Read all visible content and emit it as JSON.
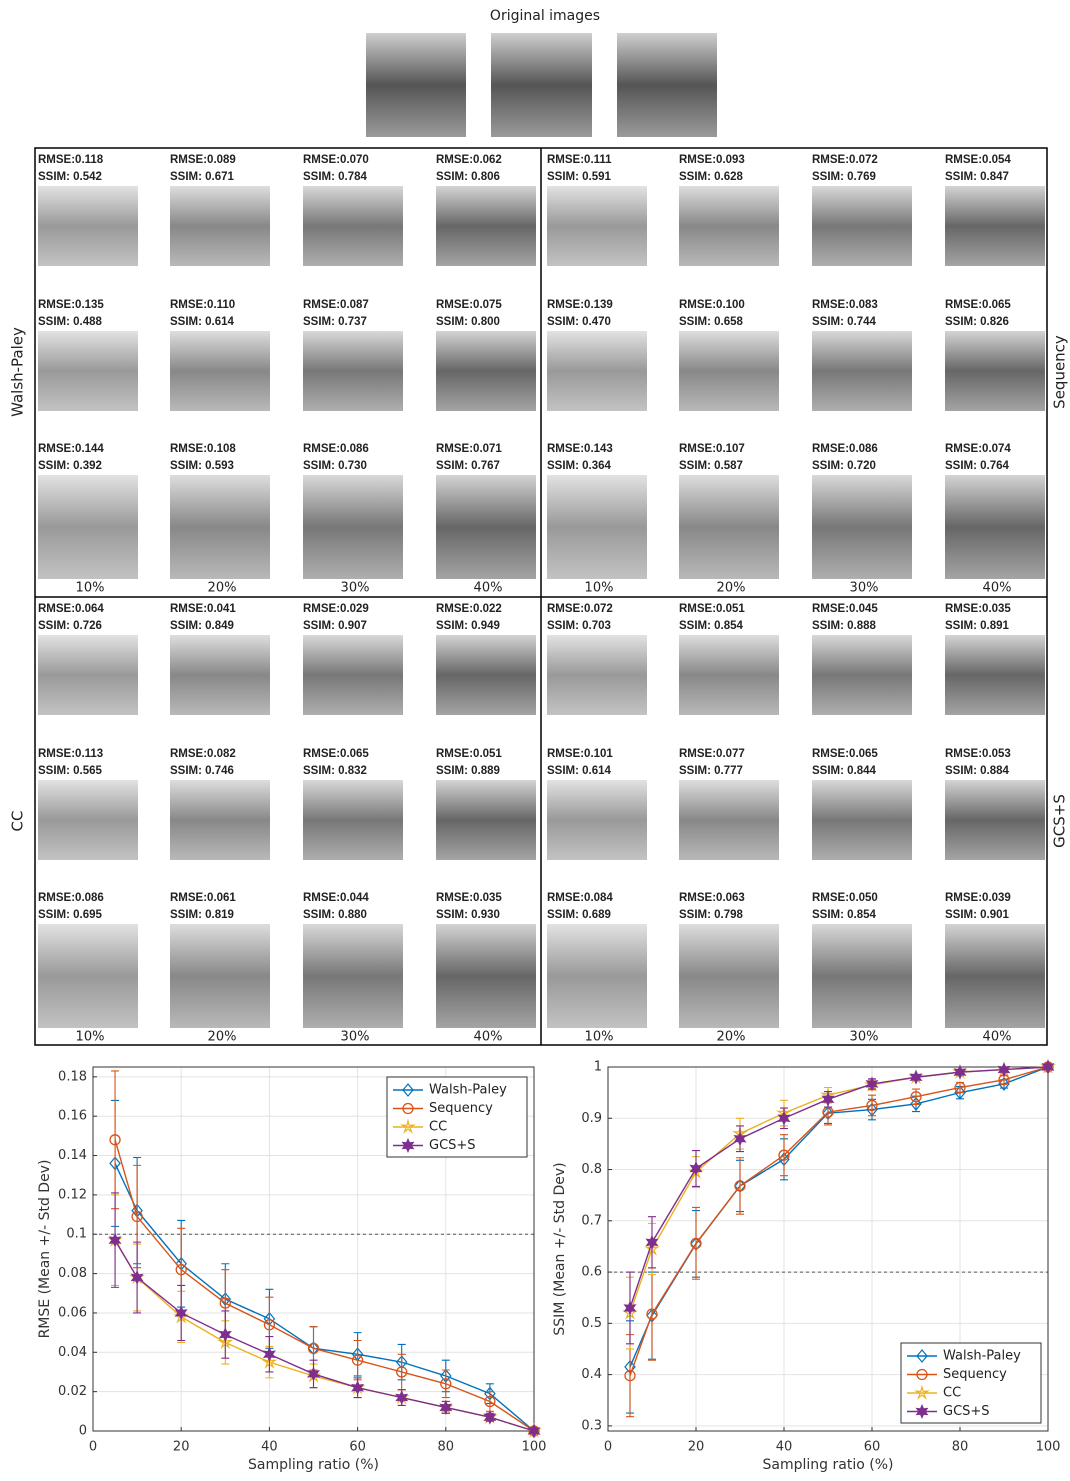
{
  "original_images": {
    "title": "Original images"
  },
  "panels": [
    {
      "name": "Walsh-Paley",
      "ratios": [
        "10%",
        "20%",
        "30%",
        "40%"
      ],
      "rows": [
        [
          [
            "RMSE:0.118",
            "SSIM: 0.542"
          ],
          [
            "RMSE:0.089",
            "SSIM: 0.671"
          ],
          [
            "RMSE:0.070",
            "SSIM: 0.784"
          ],
          [
            "RMSE:0.062",
            "SSIM: 0.806"
          ]
        ],
        [
          [
            "RMSE:0.135",
            "SSIM: 0.488"
          ],
          [
            "RMSE:0.110",
            "SSIM: 0.614"
          ],
          [
            "RMSE:0.087",
            "SSIM: 0.737"
          ],
          [
            "RMSE:0.075",
            "SSIM: 0.800"
          ]
        ],
        [
          [
            "RMSE:0.144",
            "SSIM: 0.392"
          ],
          [
            "RMSE:0.108",
            "SSIM: 0.593"
          ],
          [
            "RMSE:0.086",
            "SSIM: 0.730"
          ],
          [
            "RMSE:0.071",
            "SSIM: 0.767"
          ]
        ]
      ]
    },
    {
      "name": "Sequency",
      "ratios": [
        "10%",
        "20%",
        "30%",
        "40%"
      ],
      "rows": [
        [
          [
            "RMSE:0.111",
            "SSIM: 0.591"
          ],
          [
            "RMSE:0.093",
            "SSIM: 0.628"
          ],
          [
            "RMSE:0.072",
            "SSIM: 0.769"
          ],
          [
            "RMSE:0.054",
            "SSIM: 0.847"
          ]
        ],
        [
          [
            "RMSE:0.139",
            "SSIM: 0.470"
          ],
          [
            "RMSE:0.100",
            "SSIM: 0.658"
          ],
          [
            "RMSE:0.083",
            "SSIM: 0.744"
          ],
          [
            "RMSE:0.065",
            "SSIM: 0.826"
          ]
        ],
        [
          [
            "RMSE:0.143",
            "SSIM: 0.364"
          ],
          [
            "RMSE:0.107",
            "SSIM: 0.587"
          ],
          [
            "RMSE:0.086",
            "SSIM: 0.720"
          ],
          [
            "RMSE:0.074",
            "SSIM: 0.764"
          ]
        ]
      ]
    },
    {
      "name": "CC",
      "ratios": [
        "10%",
        "20%",
        "30%",
        "40%"
      ],
      "rows": [
        [
          [
            "RMSE:0.064",
            "SSIM: 0.726"
          ],
          [
            "RMSE:0.041",
            "SSIM: 0.849"
          ],
          [
            "RMSE:0.029",
            "SSIM: 0.907"
          ],
          [
            "RMSE:0.022",
            "SSIM: 0.949"
          ]
        ],
        [
          [
            "RMSE:0.113",
            "SSIM: 0.565"
          ],
          [
            "RMSE:0.082",
            "SSIM: 0.746"
          ],
          [
            "RMSE:0.065",
            "SSIM: 0.832"
          ],
          [
            "RMSE:0.051",
            "SSIM: 0.889"
          ]
        ],
        [
          [
            "RMSE:0.086",
            "SSIM: 0.695"
          ],
          [
            "RMSE:0.061",
            "SSIM: 0.819"
          ],
          [
            "RMSE:0.044",
            "SSIM: 0.880"
          ],
          [
            "RMSE:0.035",
            "SSIM: 0.930"
          ]
        ]
      ]
    },
    {
      "name": "GCS+S",
      "ratios": [
        "10%",
        "20%",
        "30%",
        "40%"
      ],
      "rows": [
        [
          [
            "RMSE:0.072",
            "SSIM: 0.703"
          ],
          [
            "RMSE:0.051",
            "SSIM: 0.854"
          ],
          [
            "RMSE:0.045",
            "SSIM: 0.888"
          ],
          [
            "RMSE:0.035",
            "SSIM: 0.891"
          ]
        ],
        [
          [
            "RMSE:0.101",
            "SSIM: 0.614"
          ],
          [
            "RMSE:0.077",
            "SSIM: 0.777"
          ],
          [
            "RMSE:0.065",
            "SSIM: 0.844"
          ],
          [
            "RMSE:0.053",
            "SSIM: 0.884"
          ]
        ],
        [
          [
            "RMSE:0.084",
            "SSIM: 0.689"
          ],
          [
            "RMSE:0.063",
            "SSIM: 0.798"
          ],
          [
            "RMSE:0.050",
            "SSIM: 0.854"
          ],
          [
            "RMSE:0.039",
            "SSIM: 0.901"
          ]
        ]
      ]
    }
  ],
  "chart_data": [
    {
      "type": "line",
      "x_label": "Sampling ratio (%)",
      "y_label": "RMSE (Mean +/- Std Dev)",
      "x": [
        5,
        10,
        20,
        30,
        40,
        50,
        60,
        70,
        80,
        90,
        100
      ],
      "xlim": [
        0,
        100
      ],
      "xticks": [
        0,
        20,
        40,
        60,
        80,
        100
      ],
      "ylim": [
        0,
        0.185
      ],
      "yticks": [
        0,
        0.02,
        0.04,
        0.06,
        0.08,
        0.1,
        0.12,
        0.14,
        0.16,
        0.18
      ],
      "grid": true,
      "hline": 0.1,
      "legend": "upper right",
      "series": [
        {
          "name": "Walsh-Paley",
          "color": "#0072BD",
          "marker": "diamond",
          "values": [
            0.136,
            0.112,
            0.085,
            0.067,
            0.057,
            0.042,
            0.039,
            0.035,
            0.028,
            0.019,
            0.0
          ],
          "errors": [
            0.032,
            0.027,
            0.022,
            0.018,
            0.015,
            0.011,
            0.011,
            0.009,
            0.008,
            0.005,
            0.0
          ]
        },
        {
          "name": "Sequency",
          "color": "#D95319",
          "marker": "circle",
          "values": [
            0.148,
            0.109,
            0.082,
            0.065,
            0.054,
            0.042,
            0.036,
            0.03,
            0.024,
            0.015,
            0.0
          ],
          "errors": [
            0.035,
            0.026,
            0.021,
            0.017,
            0.014,
            0.011,
            0.01,
            0.009,
            0.007,
            0.005,
            0.0
          ]
        },
        {
          "name": "CC",
          "color": "#EDB120",
          "marker": "star",
          "values": [
            0.097,
            0.078,
            0.058,
            0.045,
            0.035,
            0.028,
            0.022,
            0.017,
            0.012,
            0.007,
            0.0
          ],
          "errors": [
            0.023,
            0.017,
            0.013,
            0.011,
            0.008,
            0.006,
            0.005,
            0.004,
            0.003,
            0.002,
            0.0
          ]
        },
        {
          "name": "GCS+S",
          "color": "#7E2F8E",
          "marker": "hexagram",
          "values": [
            0.097,
            0.078,
            0.06,
            0.049,
            0.039,
            0.029,
            0.022,
            0.017,
            0.012,
            0.007,
            0.0
          ],
          "errors": [
            0.024,
            0.018,
            0.014,
            0.012,
            0.009,
            0.007,
            0.005,
            0.004,
            0.003,
            0.002,
            0.0
          ]
        }
      ]
    },
    {
      "type": "line",
      "x_label": "Sampling ratio (%)",
      "y_label": "SSIM (Mean +/- Std Dev)",
      "x": [
        5,
        10,
        20,
        30,
        40,
        50,
        60,
        70,
        80,
        90,
        100
      ],
      "xlim": [
        0,
        100
      ],
      "xticks": [
        0,
        20,
        40,
        60,
        80,
        100
      ],
      "ylim": [
        0.29,
        1
      ],
      "yticks": [
        0.3,
        0.4,
        0.5,
        0.6,
        0.7,
        0.8,
        0.9,
        1
      ],
      "grid": true,
      "hline": 0.6,
      "legend": "lower right",
      "series": [
        {
          "name": "Walsh-Paley",
          "color": "#0072BD",
          "marker": "diamond",
          "values": [
            0.415,
            0.515,
            0.655,
            0.768,
            0.82,
            0.91,
            0.917,
            0.928,
            0.95,
            0.967,
            1.0
          ],
          "errors": [
            0.09,
            0.085,
            0.065,
            0.05,
            0.04,
            0.02,
            0.02,
            0.015,
            0.012,
            0.008,
            0.0
          ]
        },
        {
          "name": "Sequency",
          "color": "#D95319",
          "marker": "circle",
          "values": [
            0.398,
            0.518,
            0.656,
            0.768,
            0.828,
            0.912,
            0.925,
            0.942,
            0.96,
            0.975,
            1.0
          ],
          "errors": [
            0.08,
            0.09,
            0.07,
            0.055,
            0.04,
            0.025,
            0.02,
            0.015,
            0.01,
            0.008,
            0.0
          ]
        },
        {
          "name": "CC",
          "color": "#EDB120",
          "marker": "star",
          "values": [
            0.52,
            0.645,
            0.795,
            0.87,
            0.91,
            0.945,
            0.965,
            0.98,
            0.99,
            0.995,
            1.0
          ],
          "errors": [
            0.07,
            0.05,
            0.03,
            0.03,
            0.025,
            0.015,
            0.01,
            0.005,
            0.004,
            0.003,
            0.0
          ]
        },
        {
          "name": "GCS+S",
          "color": "#7E2F8E",
          "marker": "hexagram",
          "values": [
            0.53,
            0.658,
            0.802,
            0.86,
            0.9,
            0.937,
            0.967,
            0.98,
            0.99,
            0.995,
            1.0
          ],
          "errors": [
            0.07,
            0.05,
            0.035,
            0.025,
            0.02,
            0.015,
            0.01,
            0.005,
            0.004,
            0.003,
            0.0
          ]
        }
      ]
    }
  ]
}
